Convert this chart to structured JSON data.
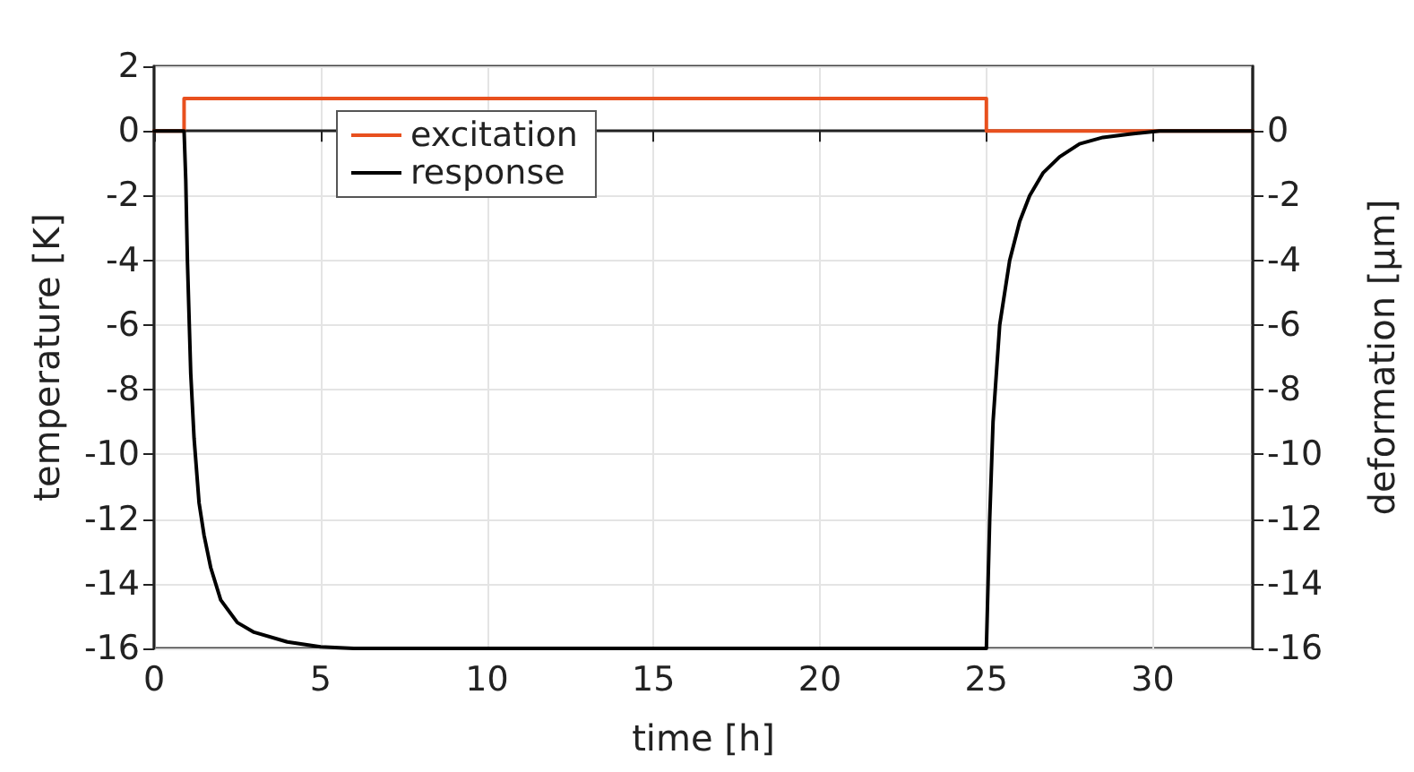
{
  "chart_data": {
    "type": "line",
    "xlabel": "time [h]",
    "ylabel": "temperature [K]",
    "y2label": "deformation [µm]",
    "xlim": [
      0,
      33
    ],
    "xticks": [
      0,
      5,
      10,
      15,
      20,
      25,
      30
    ],
    "ylim": [
      -16,
      2
    ],
    "yticks": [
      -16,
      -14,
      -12,
      -10,
      -8,
      -6,
      -4,
      -2,
      0,
      2
    ],
    "y2lim": [
      -16,
      2
    ],
    "y2ticks": [
      -16,
      -14,
      -12,
      -10,
      -8,
      -6,
      -4,
      -2,
      0
    ],
    "grid": true,
    "legend": "top left",
    "marker": "none",
    "line_style": "solid",
    "series": [
      {
        "name": "excitation",
        "type": "step",
        "color": "#e8501e",
        "x": [
          0,
          0.9,
          25,
          33
        ],
        "values": [
          0,
          1,
          0,
          0
        ]
      },
      {
        "name": "response",
        "type": "line",
        "color": "#000000",
        "x": [
          0,
          0.9,
          0.95,
          1.0,
          1.1,
          1.2,
          1.35,
          1.5,
          1.7,
          2.0,
          2.5,
          3,
          4,
          5,
          6,
          25,
          25.1,
          25.2,
          25.4,
          25.7,
          26,
          26.3,
          26.7,
          27.2,
          27.8,
          28.5,
          29.3,
          30.2,
          33
        ],
        "values": [
          0,
          0,
          -1.5,
          -4,
          -7.5,
          -9.5,
          -11.5,
          -12.5,
          -13.5,
          -14.5,
          -15.2,
          -15.5,
          -15.8,
          -15.95,
          -16,
          -16,
          -12,
          -9,
          -6,
          -4,
          -2.8,
          -2,
          -1.3,
          -0.8,
          -0.4,
          -0.2,
          -0.1,
          0,
          0
        ]
      }
    ]
  }
}
